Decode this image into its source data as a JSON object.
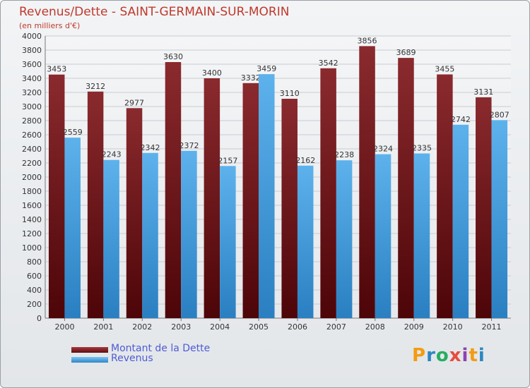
{
  "chart_data": {
    "type": "bar",
    "title": "Revenus/Dette - SAINT-GERMAIN-SUR-MORIN",
    "subtitle": "(en milliers d'€)",
    "categories": [
      "2000",
      "2001",
      "2002",
      "2003",
      "2004",
      "2005",
      "2006",
      "2007",
      "2008",
      "2009",
      "2010",
      "2011"
    ],
    "series": [
      {
        "name": "Montant de la Dette",
        "color": "#7a1b1f",
        "values": [
          3453,
          3212,
          2977,
          3630,
          3400,
          3332,
          3110,
          3542,
          3856,
          3689,
          3455,
          3131
        ]
      },
      {
        "name": "Revenus",
        "color": "#4aa3e2",
        "values": [
          2559,
          2243,
          2342,
          2372,
          2157,
          3459,
          2162,
          2238,
          2324,
          2335,
          2742,
          2807
        ]
      }
    ],
    "ylim": [
      0,
      4000
    ],
    "ytick_step": 200,
    "grid": true,
    "legend_position": "bottom-left"
  },
  "logo": {
    "text": "Proxiti",
    "letters": [
      "P",
      "r",
      "o",
      "x",
      "i",
      "t",
      "i"
    ],
    "colors": [
      "#f39c12",
      "#2e86c1",
      "#27ae60",
      "#e74c3c",
      "#8e44ad",
      "#f39c12",
      "#2e86c1"
    ]
  }
}
